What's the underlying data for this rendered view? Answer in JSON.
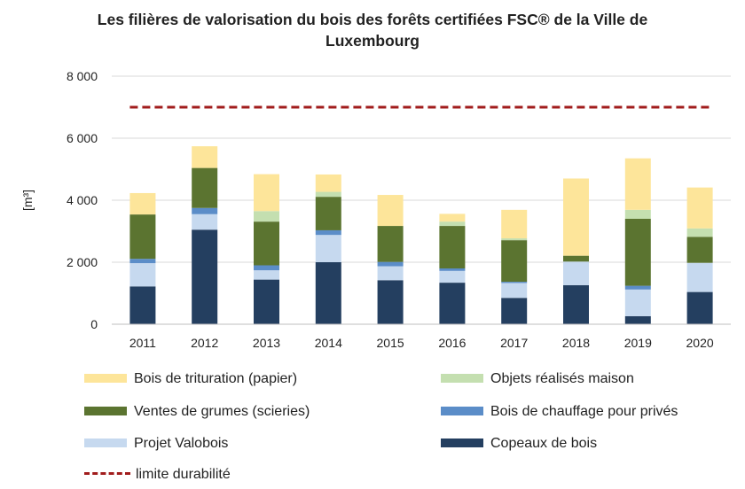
{
  "chart_data": {
    "type": "bar",
    "stacked": true,
    "title_lines": [
      "Les filières de valorisation du bois des forêts certifiées FSC® de la Ville de",
      "Luxembourg"
    ],
    "ylabel": "[m³]",
    "xlabel": "",
    "ylim": [
      0,
      8000
    ],
    "yticks": [
      0,
      2000,
      4000,
      6000,
      8000
    ],
    "ytick_labels": [
      "0",
      "2 000",
      "4 000",
      "6 000",
      "8 000"
    ],
    "grid": true,
    "legend_position": "bottom",
    "categories": [
      "2011",
      "2012",
      "2013",
      "2014",
      "2015",
      "2016",
      "2017",
      "2018",
      "2019",
      "2020"
    ],
    "series": [
      {
        "name": "Copeaux de bois",
        "color": "#243f60",
        "values": [
          1220,
          3050,
          1440,
          2000,
          1420,
          1340,
          850,
          1260,
          260,
          1040
        ]
      },
      {
        "name": "Projet Valobois",
        "color": "#c6d9ef",
        "values": [
          750,
          500,
          300,
          880,
          450,
          380,
          480,
          760,
          860,
          940
        ]
      },
      {
        "name": "Bois de chauffage pour privés",
        "color": "#5b8dc8",
        "values": [
          140,
          200,
          160,
          150,
          140,
          80,
          40,
          0,
          120,
          0
        ]
      },
      {
        "name": "Ventes de grumes (scieries)",
        "color": "#5b7430",
        "values": [
          1430,
          1290,
          1410,
          1080,
          1160,
          1370,
          1340,
          190,
          2160,
          840
        ]
      },
      {
        "name": "Objets réalisés maison",
        "color": "#c4dfb0",
        "values": [
          0,
          0,
          340,
          160,
          0,
          140,
          60,
          0,
          290,
          270
        ]
      },
      {
        "name": "Bois de trituration (papier)",
        "color": "#fde59a",
        "values": [
          690,
          700,
          1190,
          560,
          1000,
          250,
          920,
          2490,
          1660,
          1320
        ]
      }
    ],
    "limit_line": {
      "name": "limite durabilité",
      "value": 7000,
      "color": "#a11c1c"
    }
  },
  "legend": [
    {
      "label": "Bois de trituration (papier)",
      "color": "#fde59a"
    },
    {
      "label": "Objets réalisés maison",
      "color": "#c4dfb0"
    },
    {
      "label": "Ventes de grumes (scieries)",
      "color": "#5b7430"
    },
    {
      "label": "Bois de chauffage pour privés",
      "color": "#5b8dc8"
    },
    {
      "label": "Projet Valobois",
      "color": "#c6d9ef"
    },
    {
      "label": "Copeaux de bois",
      "color": "#243f60"
    },
    {
      "label": "limite durabilité",
      "color": "#a11c1c"
    }
  ]
}
